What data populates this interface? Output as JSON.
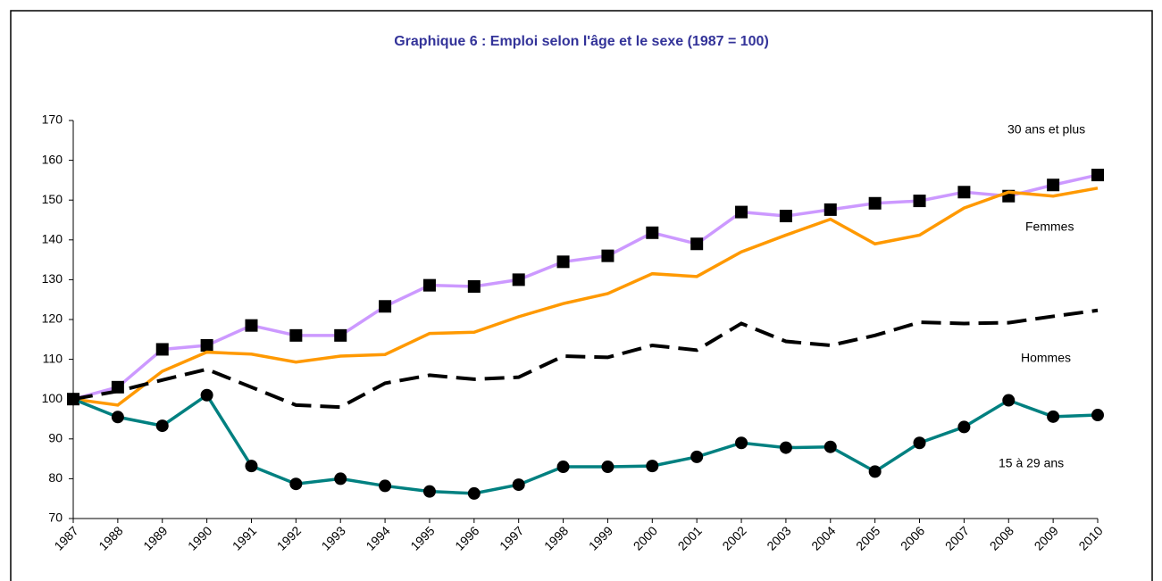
{
  "chart_data": {
    "type": "line",
    "title": "Graphique 6 : Emploi selon l'âge et le sexe (1987 = 100)",
    "categories": [
      "1987",
      "1988",
      "1989",
      "1990",
      "1991",
      "1992",
      "1993",
      "1994",
      "1995",
      "1996",
      "1997",
      "1998",
      "1999",
      "2000",
      "2001",
      "2002",
      "2003",
      "2004",
      "2005",
      "2006",
      "2007",
      "2008",
      "2009",
      "2010"
    ],
    "ylim": [
      70,
      170
    ],
    "yticks": [
      70,
      80,
      90,
      100,
      110,
      120,
      130,
      140,
      150,
      160,
      170
    ],
    "series": [
      {
        "name": "30 ans et plus",
        "color": "#cc99ff",
        "marker": "square",
        "dashed": false,
        "values": [
          100,
          103,
          112.5,
          113.5,
          118.5,
          116,
          116,
          123.3,
          128.6,
          128.3,
          130,
          134.5,
          136,
          141.8,
          139,
          147,
          146,
          147.6,
          149.2,
          149.8,
          152,
          151,
          153.8,
          156.3
        ]
      },
      {
        "name": "Femmes",
        "color": "#ff9900",
        "marker": "none",
        "dashed": false,
        "values": [
          100,
          98.5,
          107,
          111.8,
          111.3,
          109.3,
          110.8,
          111.2,
          116.5,
          116.8,
          120.7,
          124,
          126.5,
          131.5,
          130.8,
          137,
          141.2,
          145.2,
          139,
          141.2,
          148,
          152,
          151,
          153
        ]
      },
      {
        "name": "Hommes",
        "color": "#000000",
        "marker": "none",
        "dashed": true,
        "values": [
          100,
          102,
          104.8,
          107.5,
          103,
          98.5,
          98,
          104,
          106,
          105,
          105.5,
          110.8,
          110.5,
          113.5,
          112.3,
          119,
          114.5,
          113.5,
          116,
          119.3,
          119,
          119.2,
          120.8,
          122.3
        ]
      },
      {
        "name": "15 à 29 ans",
        "color": "#008080",
        "marker": "circle",
        "dashed": false,
        "values": [
          100,
          95.5,
          93.3,
          101,
          83.2,
          78.7,
          80,
          78.2,
          76.8,
          76.3,
          78.5,
          83,
          83,
          83.2,
          85.5,
          89,
          87.8,
          88,
          81.8,
          89,
          93,
          99.7,
          95.6,
          96
        ]
      }
    ]
  }
}
